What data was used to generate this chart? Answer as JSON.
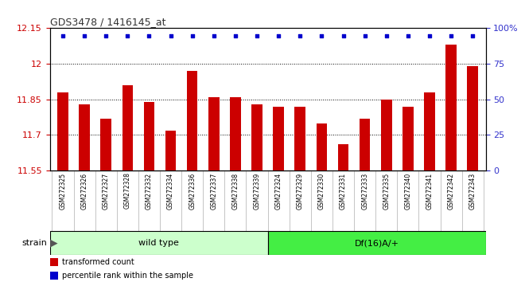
{
  "title": "GDS3478 / 1416145_at",
  "samples": [
    "GSM272325",
    "GSM272326",
    "GSM272327",
    "GSM272328",
    "GSM272332",
    "GSM272334",
    "GSM272336",
    "GSM272337",
    "GSM272338",
    "GSM272339",
    "GSM272324",
    "GSM272329",
    "GSM272330",
    "GSM272331",
    "GSM272333",
    "GSM272335",
    "GSM272340",
    "GSM272341",
    "GSM272342",
    "GSM272343"
  ],
  "bar_values": [
    11.88,
    11.83,
    11.77,
    11.91,
    11.84,
    11.72,
    11.97,
    11.86,
    11.86,
    11.83,
    11.82,
    11.82,
    11.75,
    11.66,
    11.77,
    11.85,
    11.82,
    11.88,
    12.08,
    11.99
  ],
  "bar_color": "#cc0000",
  "dot_color": "#0000cc",
  "ylim_left": [
    11.55,
    12.15
  ],
  "ylim_right": [
    0,
    100
  ],
  "yticks_left": [
    11.55,
    11.7,
    11.85,
    12.0,
    12.15
  ],
  "ytick_labels_left": [
    "11.55",
    "11.7",
    "11.85",
    "12",
    "12.15"
  ],
  "yticks_right": [
    0,
    25,
    50,
    75,
    100
  ],
  "ytick_labels_right": [
    "0",
    "25",
    "50",
    "75",
    "100%"
  ],
  "wild_type_count": 10,
  "df_count": 10,
  "group1_label": "wild type",
  "group2_label": "Df(16)A/+",
  "strain_label": "strain",
  "legend_bar_label": "transformed count",
  "legend_dot_label": "percentile rank within the sample",
  "group1_color": "#ccffcc",
  "group2_color": "#44ee44",
  "xlabel_bg": "#d8d8d8",
  "axis_color_left": "#cc0000",
  "axis_color_right": "#3333cc",
  "title_color": "#333333"
}
